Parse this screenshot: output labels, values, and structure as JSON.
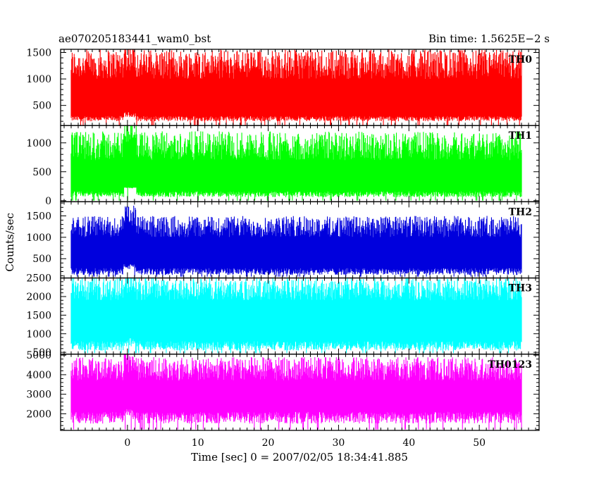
{
  "chart_data": {
    "type": "line",
    "title_left": "ae070205183441_wam0_bst",
    "title_right": "Bin time: 1.5625E−2 s",
    "xlabel": "Time [sec] 0 = 2007/02/05 18:34:41.885",
    "ylabel": "Counts/sec",
    "xlim": [
      -9.5,
      58.5
    ],
    "x_ticks": [
      0,
      10,
      20,
      30,
      40,
      50
    ],
    "x_tick_labels": [
      "0",
      "10",
      "20",
      "30",
      "40",
      "50"
    ],
    "data_range": [
      -8,
      56
    ],
    "bin_time": 0.015625,
    "panels": [
      {
        "name": "TH0",
        "label": "TH0",
        "color": "#ff0000",
        "ylim": [
          120,
          1560
        ],
        "ticks": [
          500,
          1000,
          1500
        ],
        "tick_labels": [
          "500",
          "1000",
          "1500"
        ],
        "minor_step": 100,
        "low_envelope": [
          200,
          300
        ],
        "high_envelope": [
          1000,
          1560
        ],
        "low_extreme": 100,
        "burst": {
          "t": 0.3,
          "extra": 150
        }
      },
      {
        "name": "TH1",
        "label": "TH1",
        "color": "#00ff00",
        "ylim": [
          -20,
          1300
        ],
        "ticks": [
          0,
          500,
          1000
        ],
        "tick_labels": [
          "0",
          "500",
          "1000"
        ],
        "minor_step": 100,
        "low_envelope": [
          60,
          160
        ],
        "high_envelope": [
          700,
          1200
        ],
        "low_extreme": 0,
        "burst": {
          "t": 0.4,
          "extra": 300
        }
      },
      {
        "name": "TH2",
        "label": "TH2",
        "color": "#0000dd",
        "ylim": [
          50,
          1830
        ],
        "ticks": [
          500,
          1000,
          1500
        ],
        "tick_labels": [
          "500",
          "1000",
          "1500"
        ],
        "minor_step": 100,
        "low_envelope": [
          120,
          280
        ],
        "high_envelope": [
          1000,
          1500
        ],
        "low_extreme": 80,
        "burst": {
          "t": 0.3,
          "extra": 250
        }
      },
      {
        "name": "TH3",
        "label": "TH3",
        "color": "#00ffff",
        "ylim": [
          450,
          2500
        ],
        "ticks": [
          500,
          1000,
          1500,
          2000,
          2500
        ],
        "tick_labels": [
          "500",
          "1000",
          "1500",
          "2000",
          "2500"
        ],
        "minor_step": 100,
        "low_envelope": [
          550,
          800
        ],
        "high_envelope": [
          1900,
          2500
        ],
        "low_extreme": 480,
        "burst": {
          "t": 0.3,
          "extra": 200
        }
      },
      {
        "name": "TH0123",
        "label": "TH0123",
        "color": "#ff00ff",
        "ylim": [
          1150,
          5050
        ],
        "ticks": [
          2000,
          3000,
          4000,
          5000
        ],
        "tick_labels": [
          "2000",
          "3000",
          "4000",
          "5000"
        ],
        "minor_step": 200,
        "low_envelope": [
          1500,
          2100
        ],
        "high_envelope": [
          3700,
          4900
        ],
        "low_extreme": 1200,
        "burst": {
          "t": 0.3,
          "extra": 400
        }
      }
    ]
  }
}
